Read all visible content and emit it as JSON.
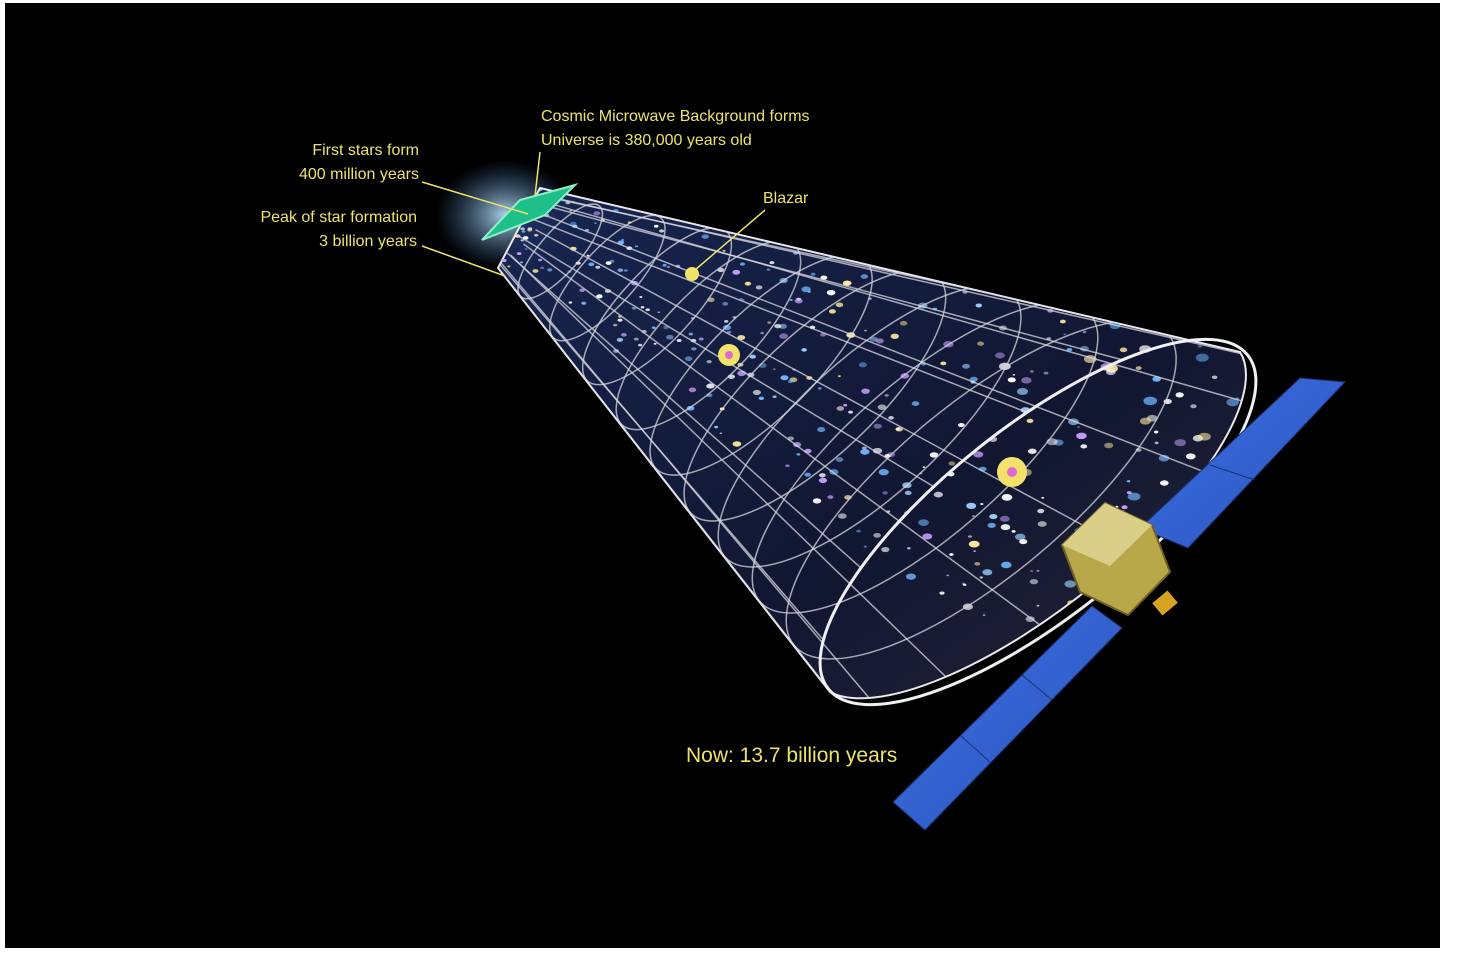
{
  "labels": {
    "cmb": [
      "Cosmic Microwave Background forms",
      "Universe is 380,000 years old"
    ],
    "first_stars": [
      "First stars form",
      "400 million years"
    ],
    "peak": [
      "Peak of star formation",
      "3 billion years"
    ],
    "blazar": "Blazar",
    "now": "Now: 13.7 billion years"
  }
}
